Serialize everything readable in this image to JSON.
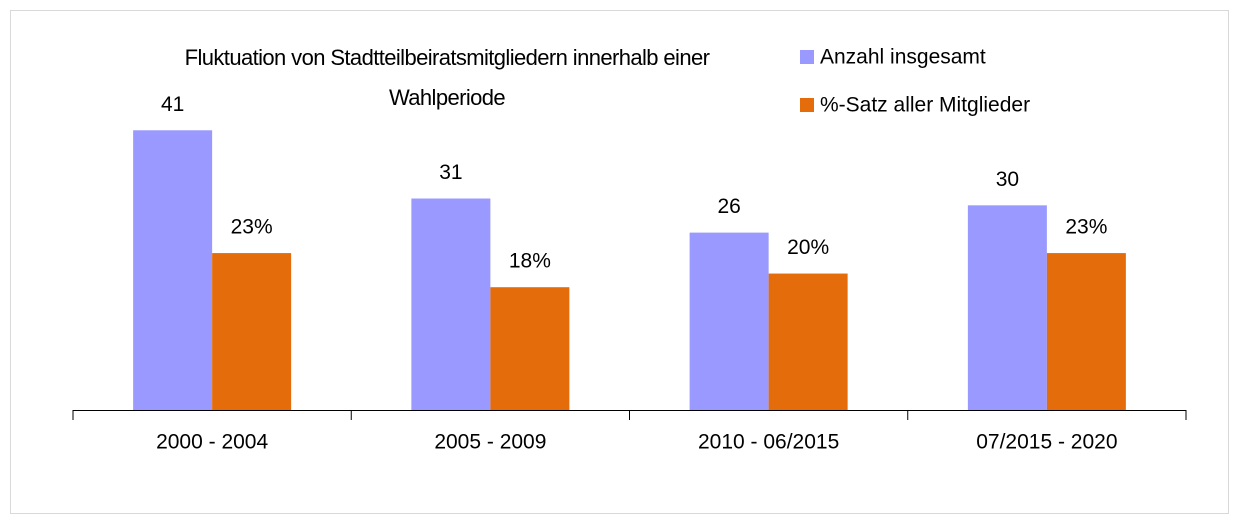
{
  "chart_data": {
    "type": "bar",
    "title": "Fluktuation von Stadtteilbeiratsmitgliedern innerhalb einer Wahlperiode",
    "categories": [
      "2000 - 2004",
      "2005 - 2009",
      "2010 - 06/2015",
      "07/2015 - 2020"
    ],
    "series": [
      {
        "name": "Anzahl insgesamt",
        "color": "#9999ff",
        "values": [
          41,
          31,
          26,
          30
        ]
      },
      {
        "name": "%-Satz aller Mitglieder",
        "color": "#e46c0a",
        "values": [
          23,
          18,
          20,
          23
        ],
        "value_labels": [
          "23%",
          "18%",
          "20%",
          "23%"
        ]
      }
    ],
    "ylim": [
      0,
      45
    ],
    "legend": "top-right"
  }
}
